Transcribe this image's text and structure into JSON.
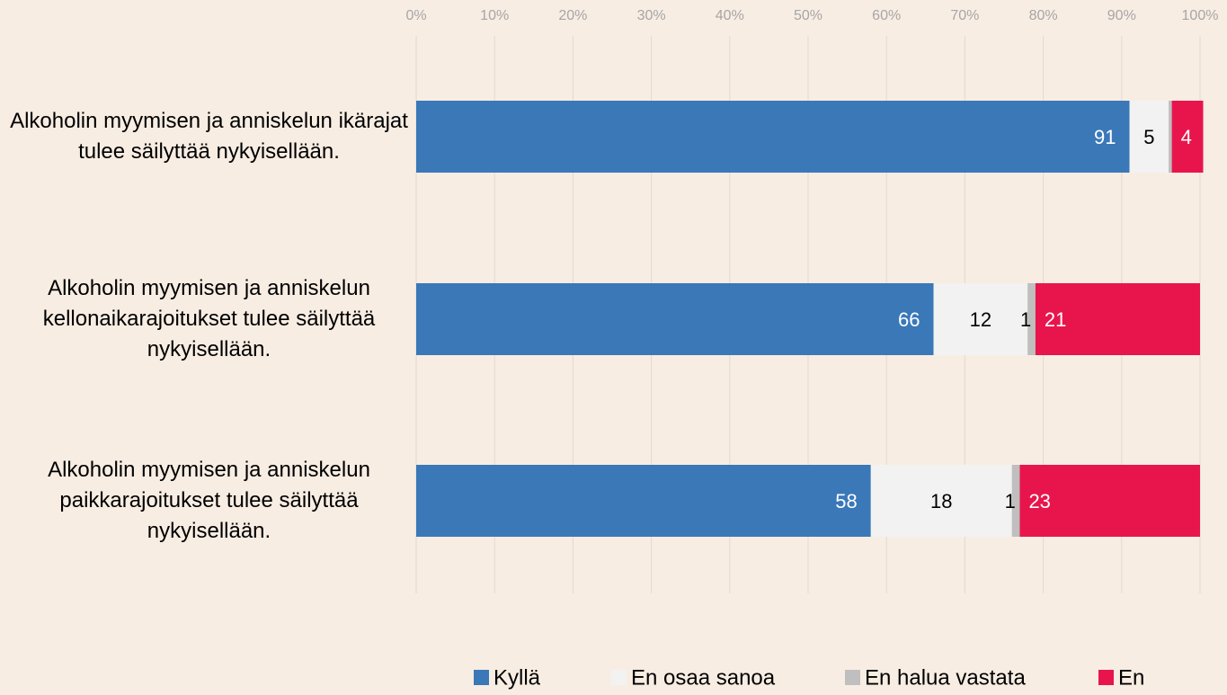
{
  "chart_data": {
    "type": "stacked-bar-horizontal",
    "categories": [
      "Alkoholin myymisen ja anniskelun ikärajat tulee säilyttää nykyisellään.",
      "Alkoholin myymisen ja anniskelun kellonaikarajoitukset tulee säilyttää nykyisellään.",
      "Alkoholin myymisen ja anniskelun paikkarajoitukset tulee säilyttää nykyisellään."
    ],
    "series": [
      {
        "name": "Kyllä",
        "color": "#3a78b8",
        "values": [
          91,
          66,
          58
        ]
      },
      {
        "name": "En osaa sanoa",
        "color": "#f2f2f2",
        "values": [
          5,
          12,
          18
        ]
      },
      {
        "name": "En halua vastata",
        "color": "#bfbfbf",
        "values": [
          0.4,
          1,
          1
        ],
        "value_labels": [
          null,
          "1",
          "1"
        ]
      },
      {
        "name": "En",
        "color": "#e8154d",
        "values": [
          4,
          21,
          23
        ]
      }
    ],
    "xlim": [
      0,
      100
    ],
    "xticks": [
      {
        "value": 0,
        "label": "0%"
      },
      {
        "value": 10,
        "label": "10%"
      },
      {
        "value": 20,
        "label": "20%"
      },
      {
        "value": 30,
        "label": "30%"
      },
      {
        "value": 40,
        "label": "40%"
      },
      {
        "value": 50,
        "label": "50%"
      },
      {
        "value": 60,
        "label": "60%"
      },
      {
        "value": 70,
        "label": "70%"
      },
      {
        "value": 80,
        "label": "80%"
      },
      {
        "value": 90,
        "label": "90%"
      },
      {
        "value": 100,
        "label": "100%"
      }
    ],
    "grid": true,
    "legend": "bottom"
  }
}
